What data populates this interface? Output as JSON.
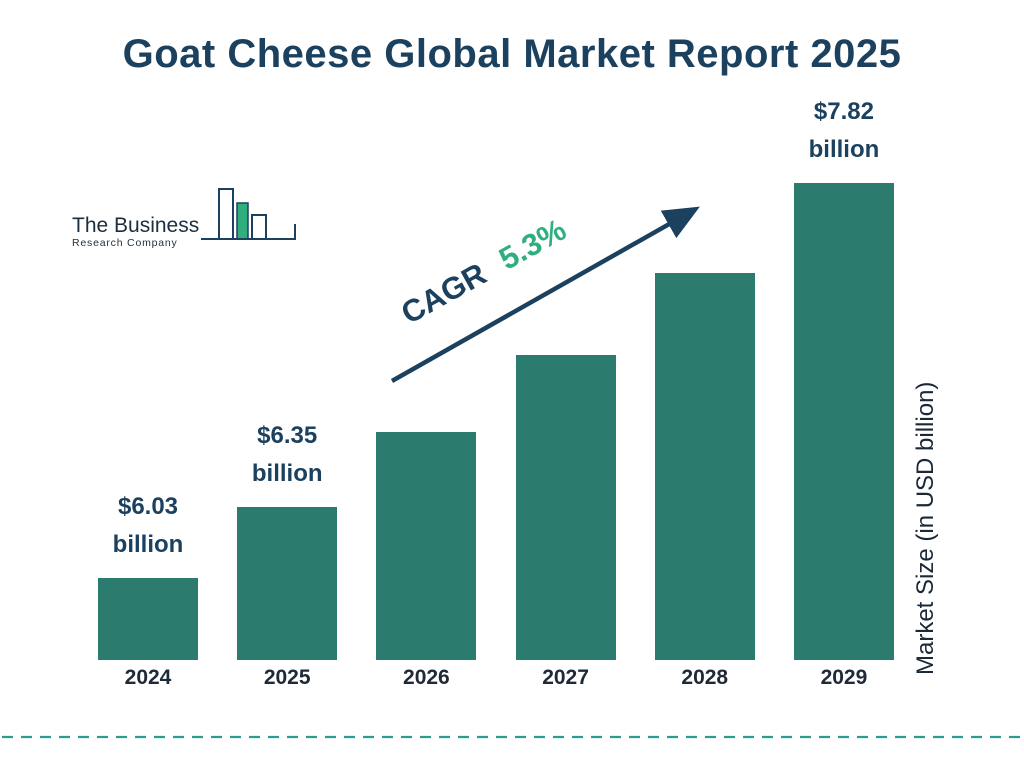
{
  "title": "Goat Cheese Global Market Report 2025",
  "logo": {
    "name_top": "The Business",
    "name_bottom": "Research Company"
  },
  "cagr": {
    "prefix": "CAGR",
    "value": "5.3%"
  },
  "y_axis_label": "Market Size (in USD billion)",
  "chart_data": {
    "type": "bar",
    "title": "Goat Cheese Global Market Report 2025",
    "ylabel": "Market Size (in USD billion)",
    "xlabel": "",
    "categories": [
      "2024",
      "2025",
      "2026",
      "2027",
      "2028",
      "2029"
    ],
    "values": [
      6.03,
      6.35,
      6.69,
      7.04,
      7.41,
      7.82
    ],
    "unit": "USD billion",
    "cagr": "5.3%",
    "bar_color": "#2B7C6E",
    "grid": false,
    "legend": false,
    "annotations": [
      {
        "category": "2024",
        "lines": [
          "$6.03",
          "billion"
        ]
      },
      {
        "category": "2025",
        "lines": [
          "$6.35",
          "billion"
        ]
      },
      {
        "category": "2029",
        "lines": [
          "$7.82",
          "billion"
        ]
      }
    ]
  },
  "colors": {
    "bar": "#2B7C6E",
    "title_navy": "#1C415F",
    "accent_green": "#2FAE7E",
    "dashed_line": "#2A9D8F",
    "arrow": "#1C415F"
  }
}
